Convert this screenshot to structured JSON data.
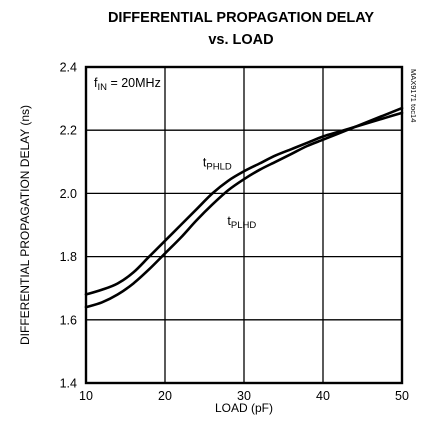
{
  "chart_data": {
    "type": "line",
    "title_line1": "DIFFERENTIAL PROPAGATION DELAY",
    "title_line2": "vs. LOAD",
    "xlabel": "LOAD (pF)",
    "ylabel": "DIFFERENTIAL PROPAGATION DELAY (ns)",
    "xlim": [
      10,
      50
    ],
    "ylim": [
      1.4,
      2.4
    ],
    "x_ticks": [
      "10",
      "20",
      "30",
      "40",
      "50"
    ],
    "y_ticks": [
      "1.4",
      "1.6",
      "1.8",
      "2.0",
      "2.2",
      "2.4"
    ],
    "grid": true,
    "condition": {
      "main": "f",
      "sub": "IN",
      "rest": " = 20MHz"
    },
    "figure_id": "MAX9171 toc14",
    "series": [
      {
        "name_main": "t",
        "name_sub": "PHLD",
        "label_x": 24.8,
        "label_y": 2.085,
        "x": [
          10,
          12,
          14,
          16,
          18,
          20,
          22,
          24,
          26,
          28,
          30,
          32,
          34,
          36,
          38,
          40,
          42,
          44,
          46,
          48,
          50
        ],
        "y": [
          1.68,
          1.695,
          1.715,
          1.75,
          1.8,
          1.85,
          1.9,
          1.95,
          2.0,
          2.04,
          2.07,
          2.095,
          2.12,
          2.14,
          2.16,
          2.18,
          2.195,
          2.21,
          2.225,
          2.24,
          2.255
        ]
      },
      {
        "name_main": "t",
        "name_sub": "PLHD",
        "label_x": 27.9,
        "label_y": 1.9,
        "x": [
          10,
          12,
          14,
          16,
          18,
          20,
          22,
          24,
          26,
          28,
          30,
          32,
          34,
          36,
          38,
          40,
          42,
          44,
          46,
          48,
          50
        ],
        "y": [
          1.64,
          1.655,
          1.68,
          1.715,
          1.76,
          1.81,
          1.86,
          1.915,
          1.965,
          2.01,
          2.045,
          2.075,
          2.1,
          2.125,
          2.15,
          2.17,
          2.19,
          2.21,
          2.23,
          2.25,
          2.27
        ]
      }
    ]
  }
}
